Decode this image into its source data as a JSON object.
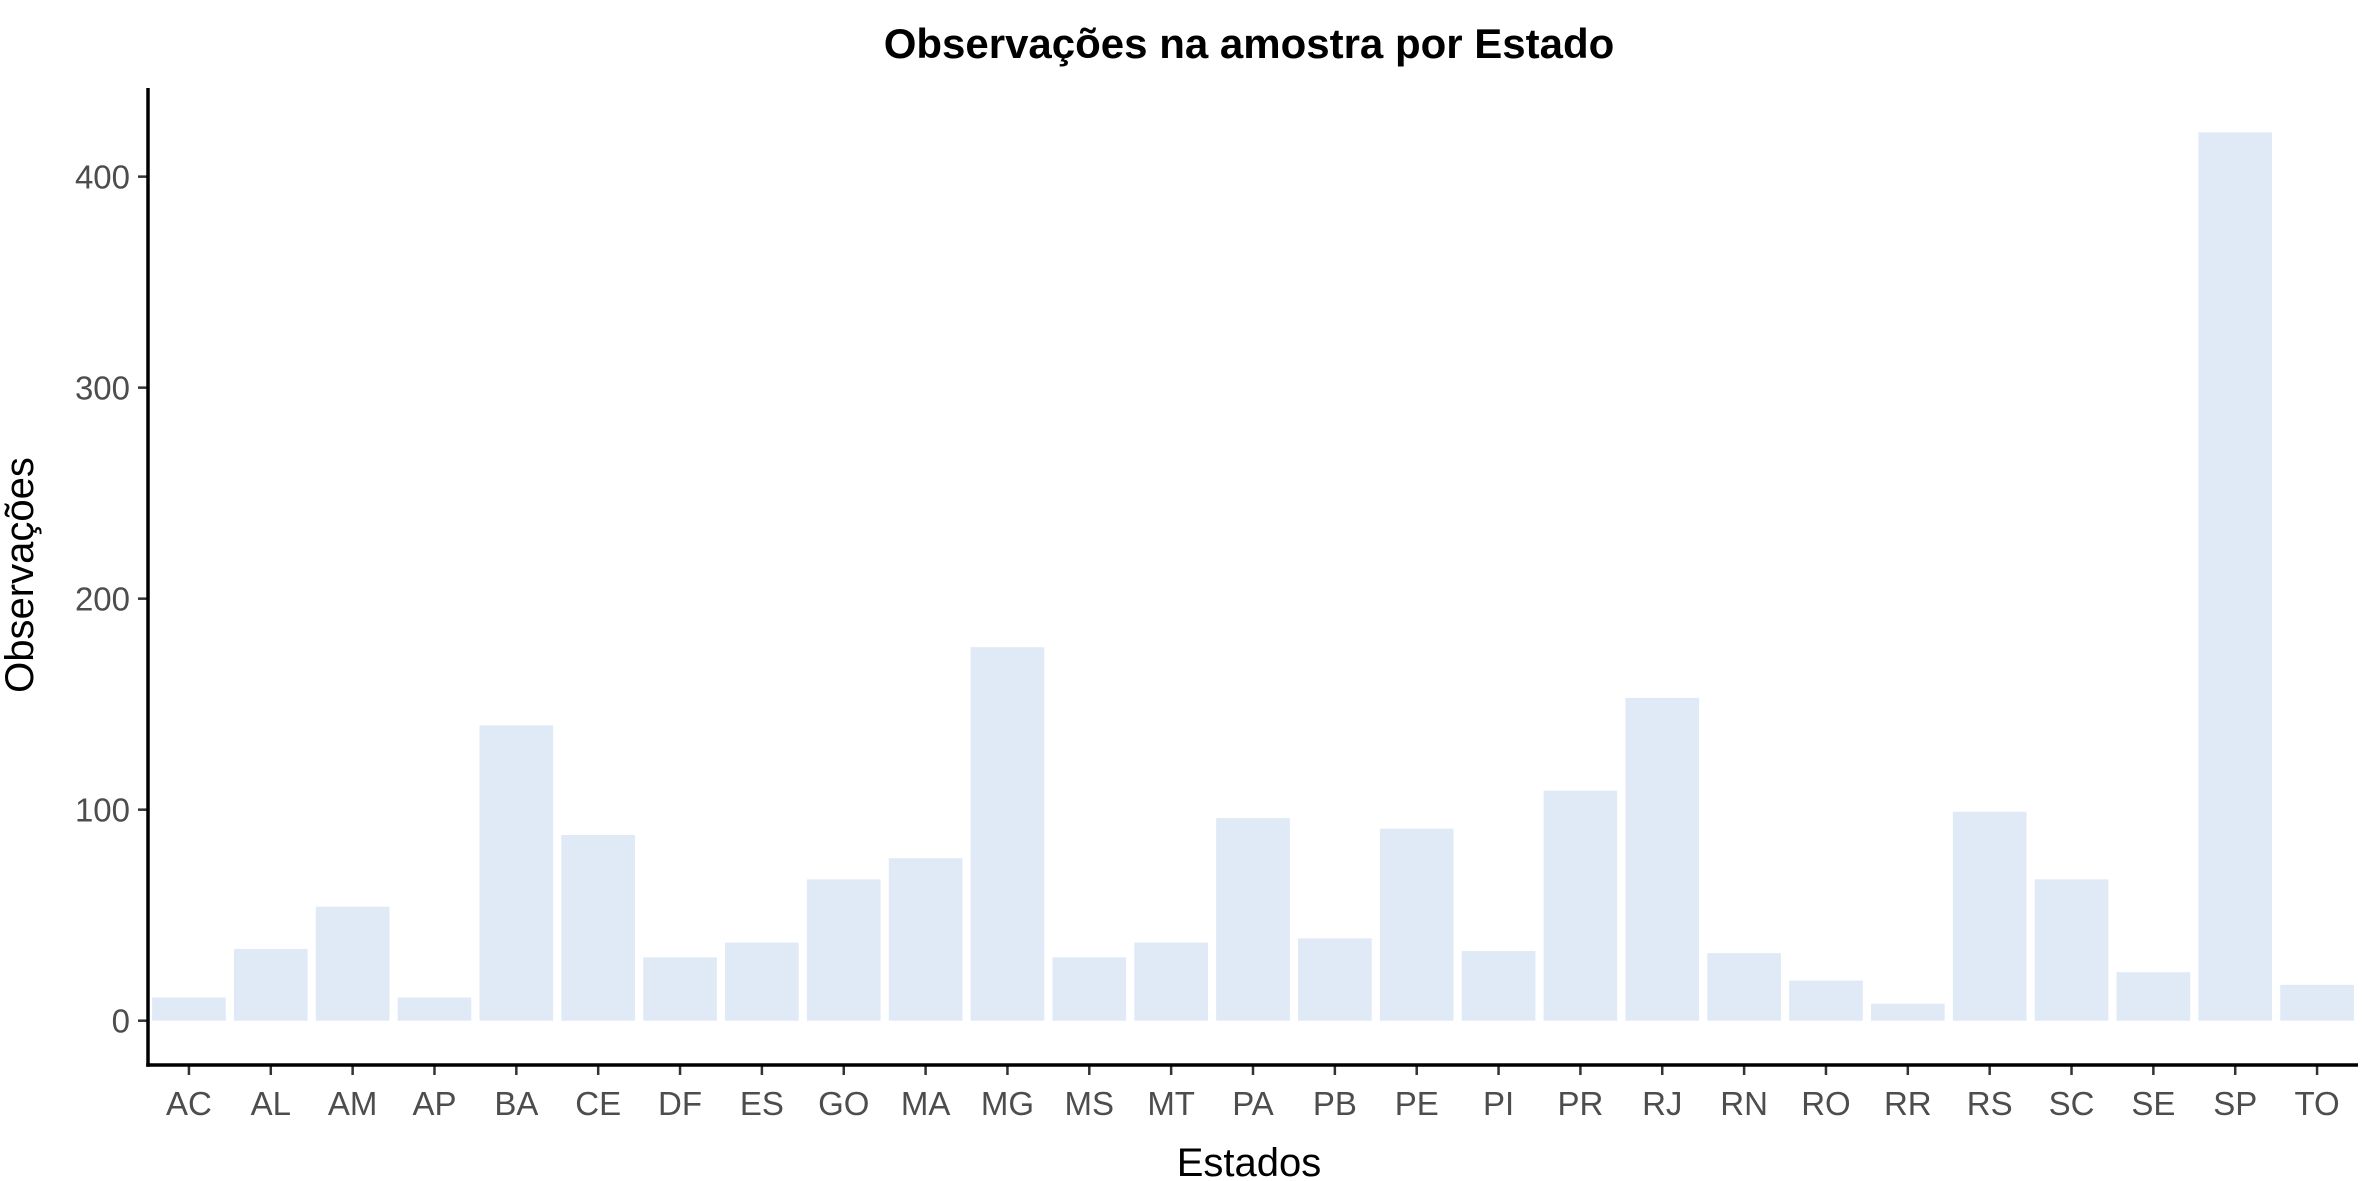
{
  "chart_data": {
    "type": "bar",
    "title": "Observações na amostra por Estado",
    "xlabel": "Estados",
    "ylabel": "Observações",
    "categories": [
      "AC",
      "AL",
      "AM",
      "AP",
      "BA",
      "CE",
      "DF",
      "ES",
      "GO",
      "MA",
      "MG",
      "MS",
      "MT",
      "PA",
      "PB",
      "PE",
      "PI",
      "PR",
      "RJ",
      "RN",
      "RO",
      "RR",
      "RS",
      "SC",
      "SE",
      "SP",
      "TO"
    ],
    "values": [
      11,
      34,
      54,
      11,
      140,
      88,
      30,
      37,
      67,
      77,
      177,
      30,
      37,
      96,
      39,
      91,
      33,
      109,
      153,
      32,
      19,
      8,
      99,
      67,
      23,
      421,
      17
    ],
    "yticks": [
      0,
      100,
      200,
      300,
      400
    ],
    "ylim": [
      -21,
      442
    ],
    "bar_color": "#dfeaf6",
    "grid": false,
    "legend": "none"
  }
}
